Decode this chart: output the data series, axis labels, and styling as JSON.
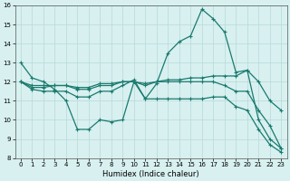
{
  "xlabel": "Humidex (Indice chaleur)",
  "x": [
    0,
    1,
    2,
    3,
    4,
    5,
    6,
    7,
    8,
    9,
    10,
    11,
    12,
    13,
    14,
    15,
    16,
    17,
    18,
    19,
    20,
    21,
    22,
    23
  ],
  "line1": [
    13.0,
    12.2,
    12.0,
    11.6,
    11.0,
    9.5,
    9.5,
    10.0,
    9.9,
    10.0,
    12.0,
    11.1,
    11.9,
    13.5,
    14.1,
    14.4,
    15.8,
    15.3,
    14.6,
    12.5,
    12.6,
    10.0,
    9.0,
    8.5
  ],
  "line2": [
    12.0,
    11.7,
    11.7,
    11.8,
    11.8,
    11.7,
    11.7,
    11.9,
    11.9,
    12.0,
    12.0,
    11.9,
    12.0,
    12.1,
    12.1,
    12.2,
    12.2,
    12.3,
    12.3,
    12.3,
    12.6,
    12.0,
    11.0,
    10.5
  ],
  "line3": [
    12.0,
    11.8,
    11.8,
    11.8,
    11.8,
    11.6,
    11.6,
    11.8,
    11.8,
    12.0,
    12.0,
    11.8,
    12.0,
    12.0,
    12.0,
    12.0,
    12.0,
    12.0,
    11.8,
    11.5,
    11.5,
    10.5,
    9.7,
    8.5
  ],
  "line4": [
    12.0,
    11.6,
    11.5,
    11.5,
    11.5,
    11.2,
    11.2,
    11.5,
    11.5,
    11.8,
    12.1,
    11.1,
    11.1,
    11.1,
    11.1,
    11.1,
    11.1,
    11.2,
    11.2,
    10.7,
    10.5,
    9.5,
    8.7,
    8.3
  ],
  "line_color": "#1a7a6e",
  "bg_color": "#d8f0f0",
  "grid_color": "#b8d8d8",
  "ylim": [
    8,
    16
  ],
  "xlim_min": -0.5,
  "xlim_max": 23.5,
  "yticks": [
    8,
    9,
    10,
    11,
    12,
    13,
    14,
    15,
    16
  ],
  "xticks": [
    0,
    1,
    2,
    3,
    4,
    5,
    6,
    7,
    8,
    9,
    10,
    11,
    12,
    13,
    14,
    15,
    16,
    17,
    18,
    19,
    20,
    21,
    22,
    23
  ],
  "marker": "+",
  "markersize": 3.5,
  "linewidth": 0.9,
  "tick_fontsize": 5,
  "xlabel_fontsize": 6
}
